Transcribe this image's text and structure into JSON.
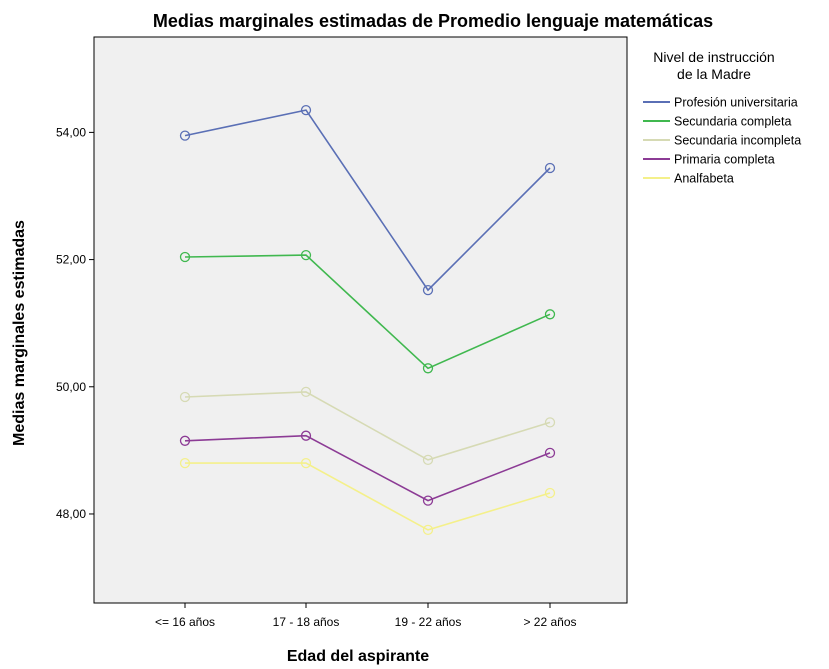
{
  "chart_data": {
    "type": "line",
    "title": "Medias marginales estimadas de Promedio lenguaje matemáticas",
    "xlabel": "Edad del aspirante",
    "ylabel": "Medias marginales estimadas",
    "categories": [
      "<= 16 años",
      "17 - 18 años",
      "19 - 22 años",
      "> 22 años"
    ],
    "ylim": [
      46.6,
      55.5
    ],
    "yticks": [
      48,
      50,
      52,
      54
    ],
    "ytick_labels": [
      "48,00",
      "50,00",
      "52,00",
      "54,00"
    ],
    "legend_title": "Nivel de instrucción de la Madre",
    "legend_title_lines": [
      "Nivel de instrucción",
      "de la Madre"
    ],
    "legend_position": "right",
    "grid": false,
    "plot_background": "#f0f0f0",
    "series": [
      {
        "name": "Profesión universitaria",
        "color": "#5a6fb5",
        "values": [
          53.95,
          54.35,
          51.52,
          53.44
        ]
      },
      {
        "name": "Secundaria completa",
        "color": "#40b84f",
        "values": [
          52.04,
          52.07,
          50.29,
          51.14
        ]
      },
      {
        "name": "Secundaria incompleta",
        "color": "#d6dab4",
        "values": [
          49.84,
          49.92,
          48.85,
          49.44
        ]
      },
      {
        "name": "Primaria completa",
        "color": "#8c3b95",
        "values": [
          49.15,
          49.23,
          48.21,
          48.96
        ]
      },
      {
        "name": "Analfabeta",
        "color": "#f4f08a",
        "values": [
          48.8,
          48.8,
          47.75,
          48.33
        ]
      }
    ]
  }
}
